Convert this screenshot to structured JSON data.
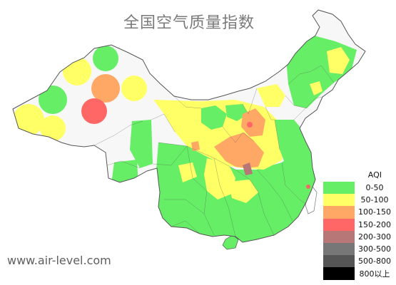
{
  "title": "全国空气质量指数",
  "watermark": "www.air-level.com",
  "legend": {
    "title": "AQI",
    "items": [
      {
        "label": "0-50",
        "color": "#66ee66"
      },
      {
        "label": "50-100",
        "color": "#ffff66"
      },
      {
        "label": "100-150",
        "color": "#ffa866"
      },
      {
        "label": "150-200",
        "color": "#ff6666"
      },
      {
        "label": "200-300",
        "color": "#b77777"
      },
      {
        "label": "300-500",
        "color": "#777777"
      },
      {
        "label": "500-800",
        "color": "#555555"
      },
      {
        "label": "800以上",
        "color": "#000000"
      }
    ]
  },
  "map_colors": {
    "good": "#66ee66",
    "moderate": "#ffff66",
    "sensitive": "#ffa866",
    "unhealthy": "#ff6666",
    "very_unhealthy": "#b77777",
    "land_base": "#f7f7f7",
    "border": "#555555",
    "coast": "#777777"
  }
}
